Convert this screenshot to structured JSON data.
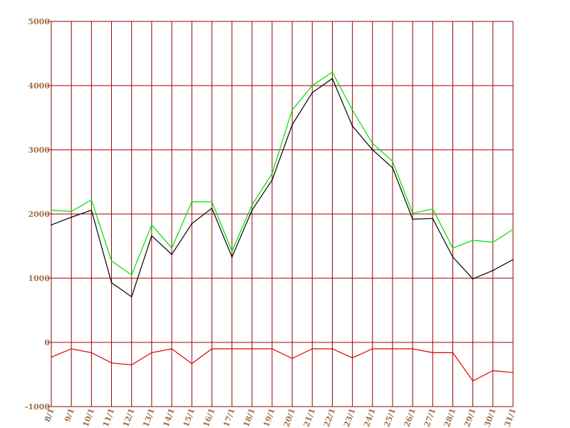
{
  "chart_data": {
    "type": "line",
    "title": "",
    "xlabel": "",
    "ylabel": "",
    "ylim": [
      -1000,
      5000
    ],
    "y_ticks": [
      "-1000",
      "0",
      "1000",
      "2000",
      "3000",
      "4000",
      "5000"
    ],
    "y_tick_values": [
      -1000,
      0,
      1000,
      2000,
      3000,
      4000,
      5000
    ],
    "grid": true,
    "colors": {
      "grid": "#990000",
      "tick_label": "#a0724a"
    },
    "categories": [
      "8/1",
      "9/1",
      "10/1",
      "11/1",
      "12/1",
      "13/1",
      "14/1",
      "15/1",
      "16/1",
      "17/1",
      "18/1",
      "19/1",
      "20/1",
      "21/1",
      "22/1",
      "23/1",
      "24/1",
      "25/1",
      "26/1",
      "27/1",
      "28/1",
      "29/1",
      "30/1",
      "31/1"
    ],
    "series": [
      {
        "color": "#00dd00",
        "values": [
          2060,
          2040,
          2220,
          1270,
          1050,
          1830,
          1470,
          2190,
          2190,
          1420,
          2140,
          2630,
          3620,
          4000,
          4210,
          3620,
          3100,
          2820,
          2010,
          2080,
          1470,
          1590,
          1560,
          1760
        ]
      },
      {
        "color": "#000000",
        "values": [
          1830,
          1950,
          2060,
          930,
          710,
          1660,
          1370,
          1850,
          2090,
          1330,
          2060,
          2530,
          3390,
          3890,
          4110,
          3370,
          3000,
          2720,
          1920,
          1930,
          1330,
          990,
          1120,
          1290
        ]
      },
      {
        "color": "#dd0000",
        "values": [
          -230,
          -100,
          -160,
          -320,
          -350,
          -160,
          -100,
          -330,
          -100,
          -100,
          -100,
          -100,
          -250,
          -100,
          -100,
          -240,
          -100,
          -100,
          -100,
          -160,
          -160,
          -600,
          -440,
          -470
        ]
      }
    ]
  }
}
